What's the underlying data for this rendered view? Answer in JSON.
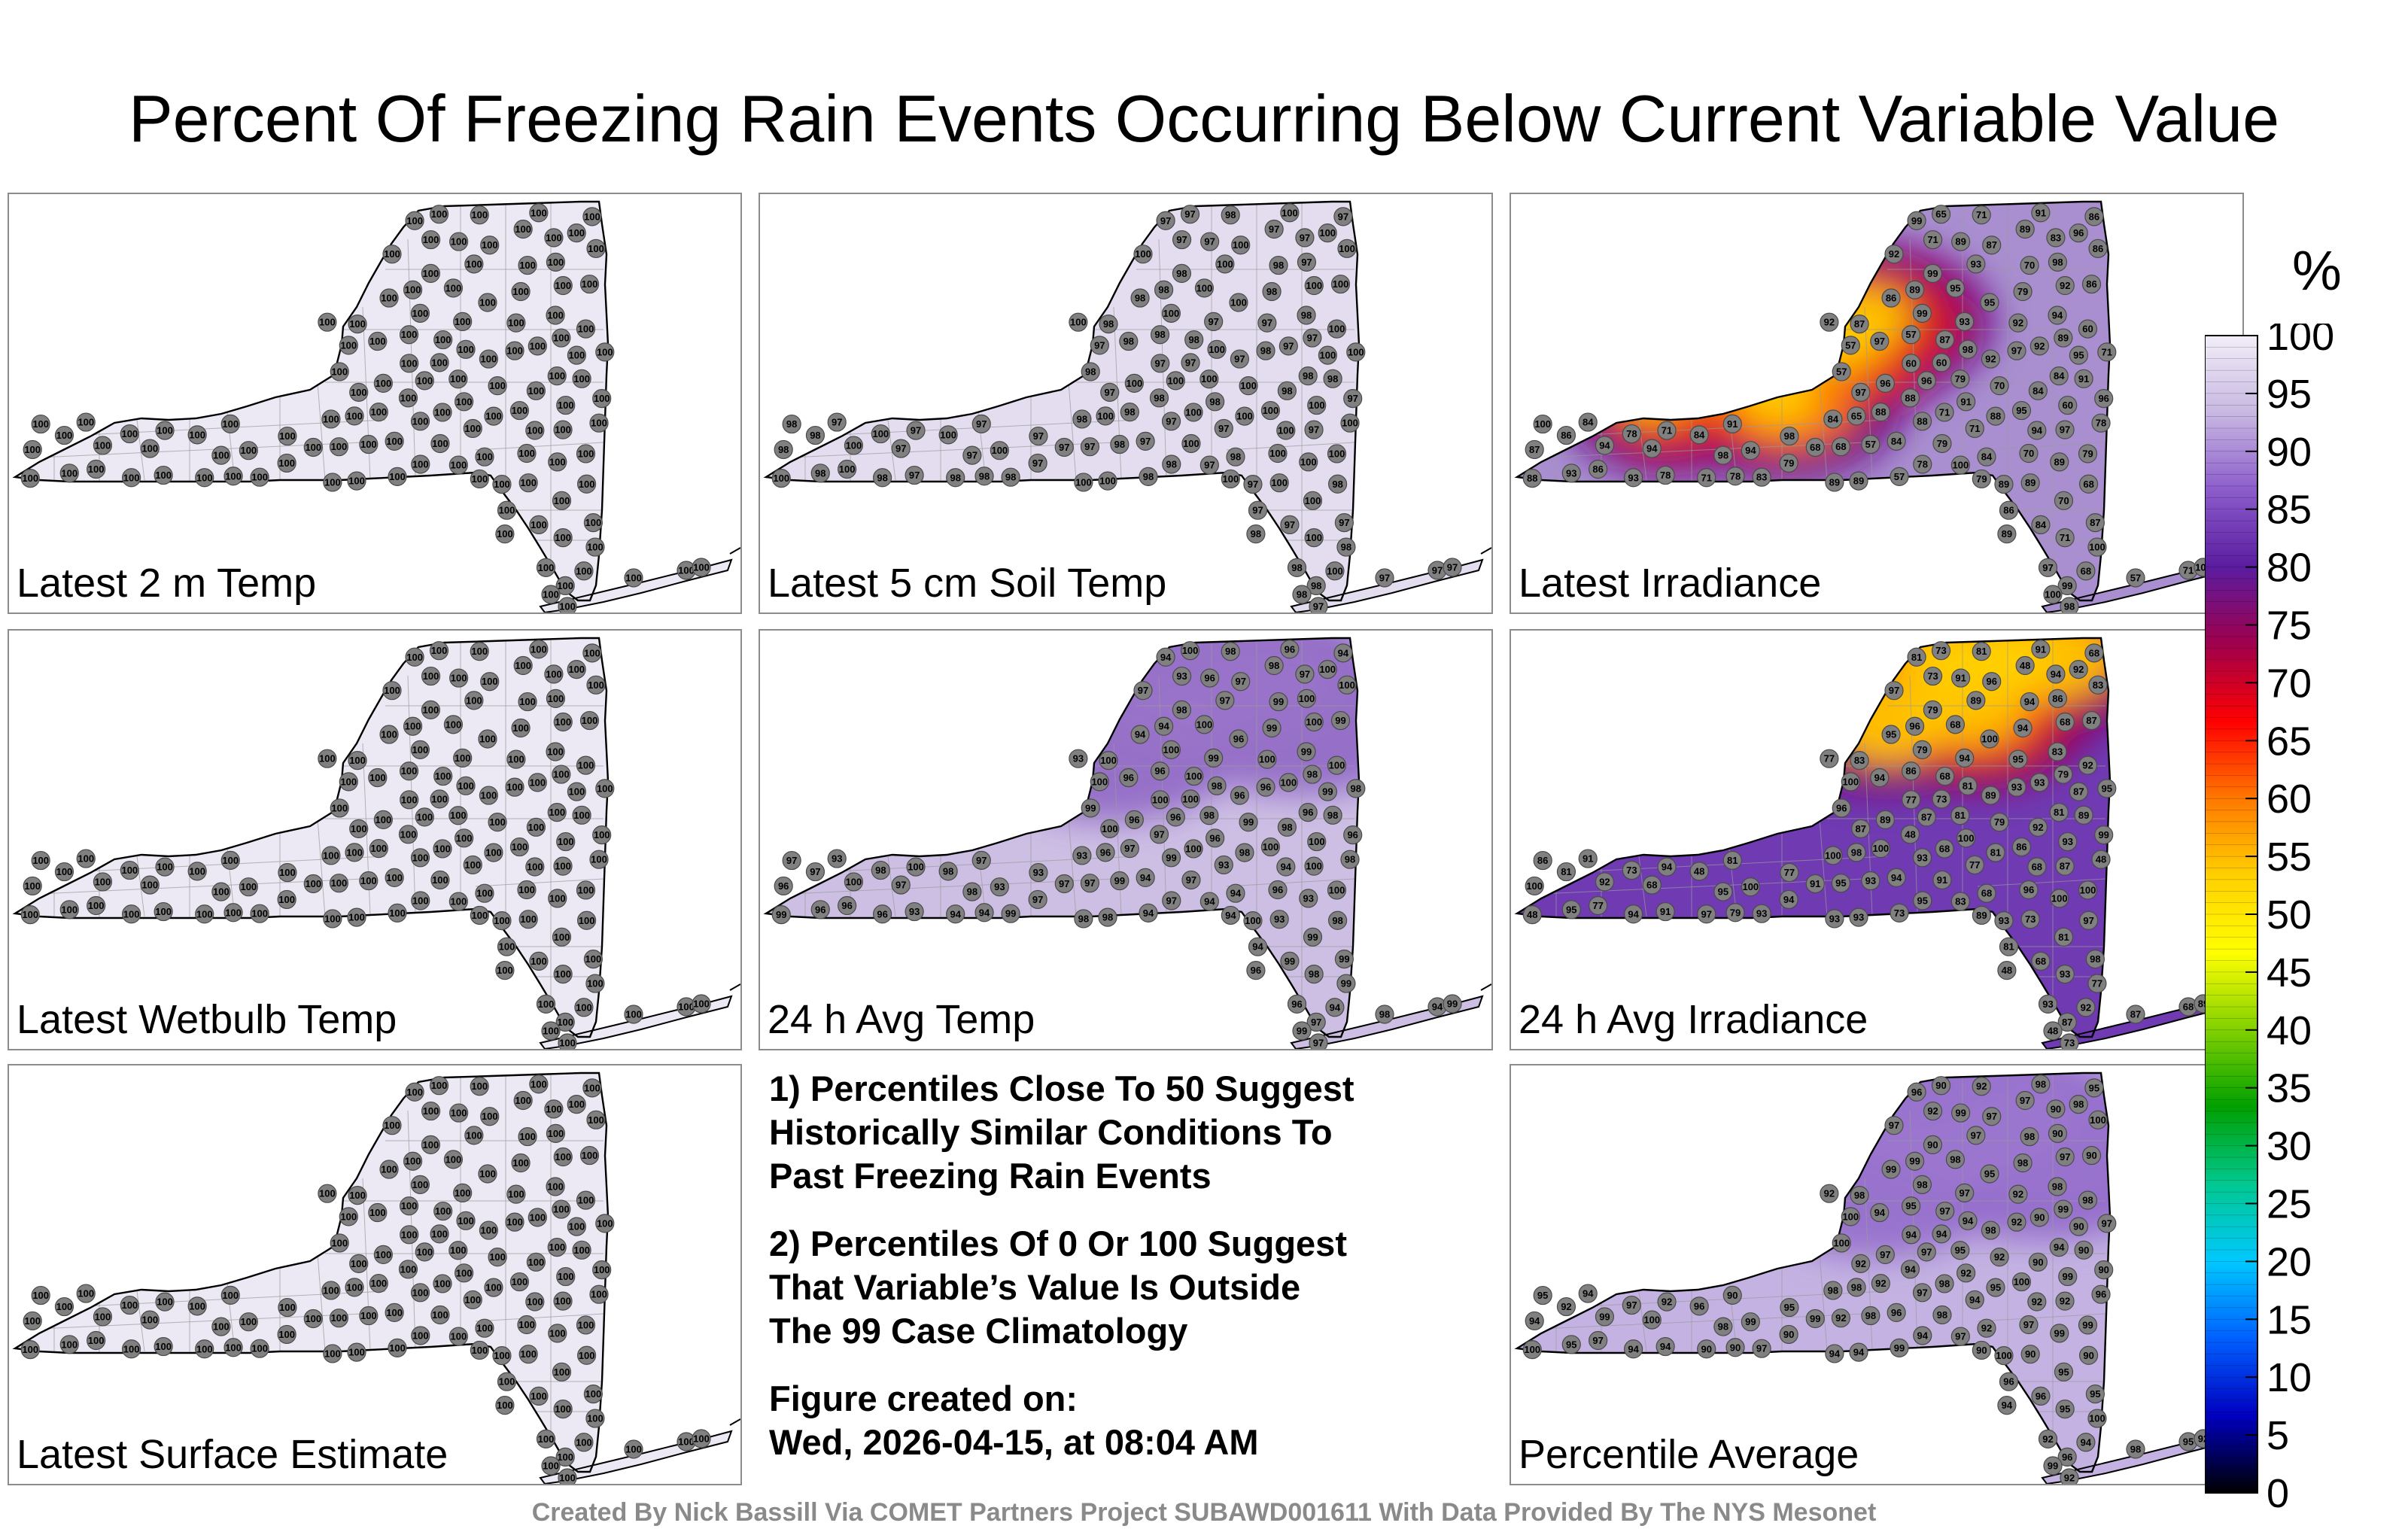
{
  "title": "Percent Of Freezing Rain Events Occurring Below Current Variable Value",
  "panels": [
    {
      "label": "Latest 2 m Temp",
      "color": "#ece8f4",
      "values": [
        100
      ]
    },
    {
      "label": "Latest 5 cm Soil Temp",
      "color": "#e4ddf0",
      "values": [
        100,
        98,
        97
      ]
    },
    {
      "label": "Latest Irradiance",
      "color": "#a98fd0",
      "hot": [
        "#5a0a8c",
        "#a0005c",
        "#e02010",
        "#ff8000",
        "#ffd000"
      ],
      "values": [
        86,
        92,
        87,
        89,
        91,
        94,
        96,
        60,
        84,
        78,
        54,
        57,
        65,
        68,
        70,
        79,
        83,
        88,
        93,
        97,
        98,
        100,
        99,
        95,
        71
      ]
    },
    {
      "label": "Latest Wetbulb Temp",
      "color": "#ece8f4",
      "values": [
        100
      ]
    },
    {
      "label": "24 h Avg Temp",
      "color": "#cdbfe4",
      "hot": [
        "#7f4fbf",
        "#9a74c9"
      ],
      "values": [
        93,
        94,
        96,
        100,
        99,
        98,
        97
      ]
    },
    {
      "label": "24 h Avg Irradiance",
      "color": "#6f3ab2",
      "hot": [
        "#7a0070",
        "#c00030",
        "#ff6000",
        "#ffd000"
      ],
      "values": [
        48,
        73,
        77,
        79,
        68,
        81,
        83,
        86,
        87,
        89,
        91,
        92,
        93,
        94,
        95,
        96,
        97,
        98,
        99,
        100
      ]
    },
    {
      "label": "Latest Surface Estimate",
      "color": "#ece8f4",
      "values": [
        100
      ]
    },
    null,
    {
      "label": "Percentile Average",
      "color": "#c4b3e2",
      "hot": [
        "#8556c4",
        "#9b77cf"
      ],
      "values": [
        90,
        92,
        94,
        95,
        96,
        97,
        98,
        99,
        100
      ]
    }
  ],
  "notes": [
    "1) Percentiles Close To 50 Suggest\nHistorically Similar Conditions To\nPast Freezing Rain Events",
    "2) Percentiles Of 0 Or 100 Suggest\nThat Variable’s Value Is Outside\nThe 99 Case Climatology",
    "Figure created on:\nWed, 2026-04-15, at 08:04 AM"
  ],
  "footer": "Created By Nick Bassill Via COMET Partners Project SUBAWD001611 With Data Provided By The NYS Mesonet",
  "colorbar": {
    "unit": "%",
    "ticks": [
      "100",
      "95",
      "90",
      "85",
      "80",
      "75",
      "70",
      "65",
      "60",
      "55",
      "50",
      "45",
      "40",
      "35",
      "30",
      "25",
      "20",
      "15",
      "10",
      "5",
      "0"
    ],
    "stops": [
      "#f2eef8",
      "#c8b8e2",
      "#8c5ccc",
      "#5a1ca0",
      "#a0004c",
      "#ff0000",
      "#ff7800",
      "#ffd000",
      "#ffff00",
      "#80d000",
      "#00a000",
      "#00c890",
      "#00c8ff",
      "#0060ff",
      "#0000c0",
      "#000000"
    ]
  }
}
